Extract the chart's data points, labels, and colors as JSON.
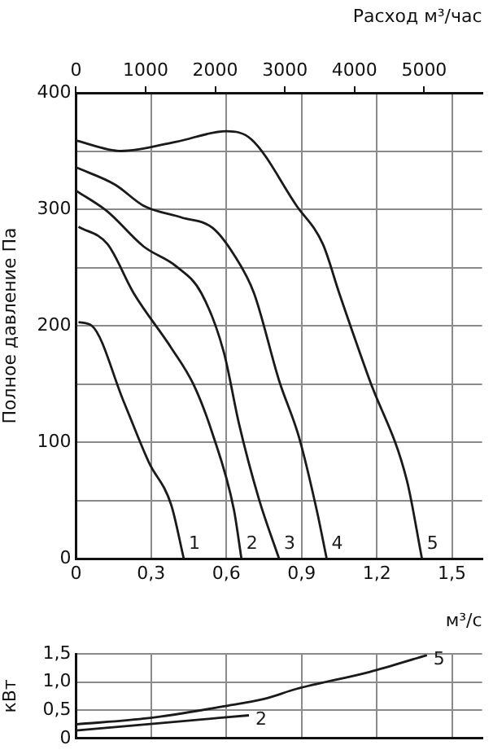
{
  "chart_data": [
    {
      "type": "line",
      "xlabel": "м³/с",
      "ylabel": "Полное давление Па",
      "x2label": "Расход м³/час",
      "xlim": [
        0,
        1.62
      ],
      "xticks": [
        0,
        {
          "value": 0.3,
          "label": "0,3"
        },
        {
          "value": 0.6,
          "label": "0,6"
        },
        {
          "value": 0.9,
          "label": "0,9"
        },
        {
          "value": 1.2,
          "label": "1,2"
        },
        {
          "value": 1.5,
          "label": "1,5"
        }
      ],
      "x2lim": [
        0,
        5832
      ],
      "x2ticks": [
        0,
        1000,
        2000,
        3000,
        4000,
        5000
      ],
      "ylim": [
        0,
        400
      ],
      "yticks": [
        0,
        {
          "value": 50,
          "label": null
        },
        100,
        {
          "value": 150,
          "label": null
        },
        200,
        {
          "value": 250,
          "label": null
        },
        300,
        {
          "value": 350,
          "label": null
        },
        400
      ],
      "grid": true,
      "marker": "none",
      "line_style": "solid",
      "series": [
        {
          "name": "1",
          "color": "#1a1a1a",
          "x": [
            0.01,
            0.063,
            0.19,
            0.29,
            0.38,
            0.43
          ],
          "values": [
            203,
            200,
            135,
            83,
            46,
            0
          ]
        },
        {
          "name": "2",
          "color": "#1a1a1a",
          "x": [
            0.01,
            0.126,
            0.23,
            0.38,
            0.47,
            0.545,
            0.63,
            0.66
          ],
          "values": [
            285,
            270,
            228,
            181,
            149,
            107,
            42,
            0
          ]
        },
        {
          "name": "3",
          "color": "#1a1a1a",
          "x": [
            0,
            0.126,
            0.27,
            0.4,
            0.5,
            0.59,
            0.65,
            0.73,
            0.81
          ],
          "values": [
            316,
            298,
            268,
            251,
            228,
            177,
            116,
            51,
            0
          ]
        },
        {
          "name": "4",
          "color": "#1a1a1a",
          "x": [
            0,
            0.157,
            0.27,
            0.42,
            0.545,
            0.63,
            0.71,
            0.81,
            0.89,
            0.96,
            1.0
          ],
          "values": [
            336,
            321,
            303,
            293,
            284,
            261,
            228,
            153,
            104,
            42,
            0
          ]
        },
        {
          "name": "5",
          "color": "#1a1a1a",
          "x": [
            0,
            0.18,
            0.4,
            0.6,
            0.7,
            0.88,
            0.985,
            1.05,
            1.17,
            1.32,
            1.38
          ],
          "values": [
            359,
            350,
            358,
            367,
            360,
            303,
            270,
            228,
            154,
            67,
            0
          ]
        }
      ]
    },
    {
      "type": "line",
      "ylabel": "кВт",
      "tick_labels": "y",
      "xlim": [
        0,
        1.62
      ],
      "xticks": [
        0,
        0.3,
        0.6,
        0.9,
        1.2,
        1.5
      ],
      "ylim": [
        0,
        1.5
      ],
      "yticks": [
        0,
        {
          "value": 0.5,
          "label": "0,5"
        },
        {
          "value": 1.0,
          "label": "1,0"
        },
        {
          "value": 1.5,
          "label": "1,5"
        }
      ],
      "grid": true,
      "marker": "none",
      "line_style": "solid",
      "series": [
        {
          "name": "2",
          "color": "#1a1a1a",
          "x": [
            0,
            0.335,
            0.69
          ],
          "values": [
            0.14,
            0.27,
            0.41
          ]
        },
        {
          "name": "5",
          "color": "#1a1a1a",
          "x": [
            0,
            0.29,
            0.59,
            0.75,
            0.88,
            1.17,
            1.4
          ],
          "values": [
            0.25,
            0.36,
            0.57,
            0.7,
            0.88,
            1.18,
            1.48
          ]
        }
      ]
    }
  ]
}
